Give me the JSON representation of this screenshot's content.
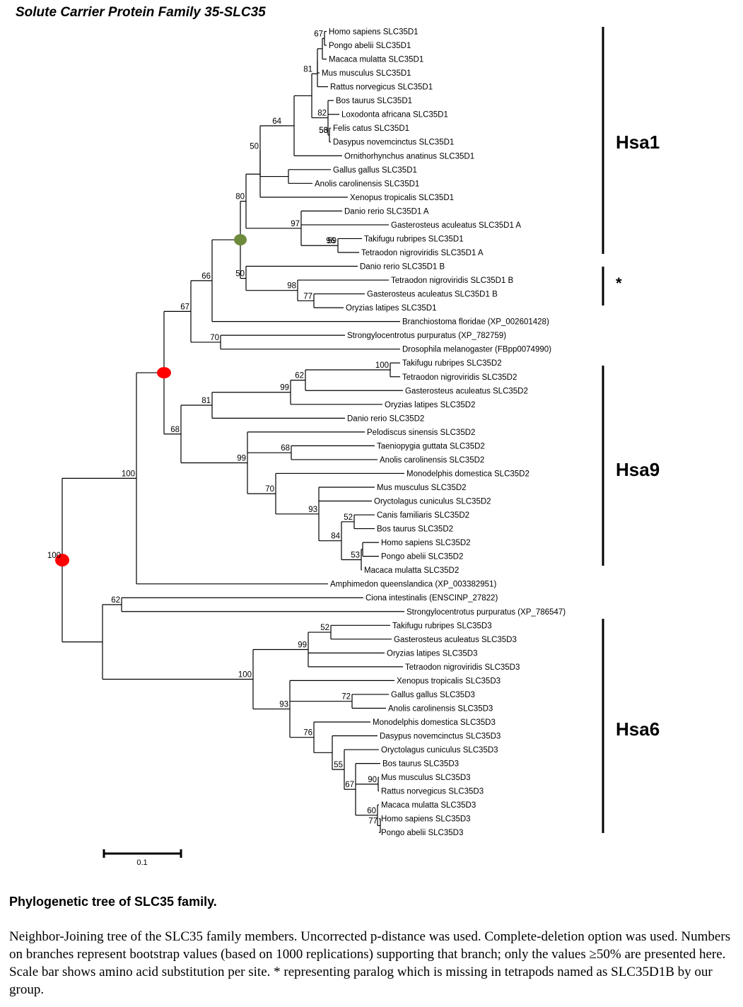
{
  "title": "Solute Carrier Protein Family 35-SLC35",
  "leaves": [
    "Homo sapiens SLC35D1",
    "Pongo abelii SLC35D1",
    "Macaca mulatta SLC35D1",
    "Mus musculus SLC35D1",
    "Rattus norvegicus SLC35D1",
    "Bos taurus SLC35D1",
    "Loxodonta africana SLC35D1",
    "Felis catus SLC35D1",
    "Dasypus novemcinctus SLC35D1",
    "Ornithorhynchus anatinus SLC35D1",
    "Gallus gallus SLC35D1",
    "Anolis carolinensis SLC35D1",
    "Xenopus tropicalis SLC35D1",
    "Danio rerio SLC35D1 A",
    "Gasterosteus aculeatus SLC35D1 A",
    "Takifugu rubripes SLC35D1",
    "Tetraodon nigroviridis SLC35D1 A",
    "Danio rerio SLC35D1 B",
    "Tetraodon nigroviridis SLC35D1 B",
    "Gasterosteus aculeatus SLC35D1 B",
    "Oryzias latipes SLC35D1",
    "Branchiostoma floridae (XP_002601428)",
    "Strongylocentrotus purpuratus (XP_782759)",
    "Drosophila melanogaster (FBpp0074990)",
    "Takifugu rubripes SLC35D2",
    "Tetraodon nigroviridis SLC35D2",
    "Gasterosteus aculeatus SLC35D2",
    "Oryzias latipes SLC35D2",
    "Danio rerio SLC35D2",
    "Pelodiscus sinensis SLC35D2",
    "Taeniopygia guttata SLC35D2",
    "Anolis carolinensis SLC35D2",
    "Monodelphis domestica SLC35D2",
    "Mus musculus SLC35D2",
    "Oryctolagus cuniculus SLC35D2",
    "Canis familiaris SLC35D2",
    "Bos taurus SLC35D2",
    "Homo sapiens SLC35D2",
    "Pongo abelii SLC35D2",
    "Macaca mulatta SLC35D2",
    "Amphimedon queenslandica (XP_003382951)",
    "Ciona intestinalis (ENSCINP_27822)",
    "Strongylocentrotus purpuratus (XP_786547)",
    "Takifugu rubripes SLC35D3",
    "Gasterosteus aculeatus SLC35D3",
    "Oryzias latipes SLC35D3",
    "Tetraodon nigroviridis SLC35D3",
    "Xenopus tropicalis SLC35D3",
    "Gallus gallus SLC35D3",
    "Anolis carolinensis SLC35D3",
    "Monodelphis domestica SLC35D3",
    "Dasypus novemcinctus SLC35D3",
    "Oryctolagus cuniculus SLC35D3",
    "Bos taurus SLC35D3",
    "Mus musculus SLC35D3",
    "Rattus norvegicus SLC35D3",
    "Macaca mulatta SLC35D3",
    "Homo sapiens SLC35D3",
    "Pongo abelii SLC35D3"
  ],
  "bootstrap_values": [
    "67",
    "81",
    "82",
    "56",
    "53",
    "64",
    "50",
    "97",
    "96",
    "59",
    "80",
    "50",
    "98",
    "77",
    "66",
    "70",
    "67",
    "100",
    "62",
    "99",
    "81",
    "68",
    "68",
    "99",
    "70",
    "93",
    "52",
    "84",
    "81",
    "53",
    "100",
    "62",
    "52",
    "99",
    "100",
    "93",
    "72",
    "76",
    "55",
    "67",
    "90",
    "60",
    "77",
    "68"
  ],
  "clades": [
    {
      "name": "Hsa1"
    },
    {
      "name": "*"
    },
    {
      "name": "Hsa9"
    },
    {
      "name": "Hsa6"
    }
  ],
  "scale_bar": {
    "label": "0.1"
  },
  "colors": {
    "red_node": "#ff0000",
    "green_node": "#6e8b3d",
    "lines": "#000000"
  },
  "caption": {
    "title": "Phylogenetic tree of SLC35 family.",
    "text": "Neighbor-Joining tree of the SLC35 family members. Uncorrected p-distance was used. Complete-deletion option was used. Numbers on branches represent bootstrap values (based on 1000 replications) supporting that branch; only the values ≥50% are presented here. Scale bar shows amino acid substitution per site. * representing paralog which is missing in tetrapods named as SLC35D1B by our group."
  }
}
